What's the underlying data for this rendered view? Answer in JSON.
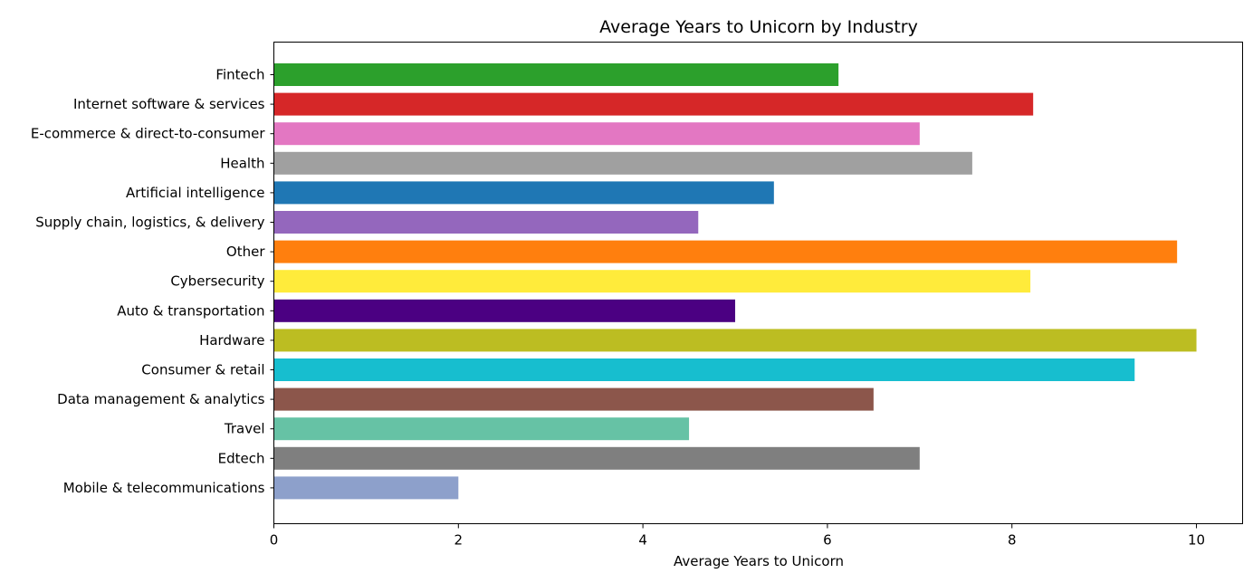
{
  "chart_data": {
    "type": "bar",
    "orientation": "horizontal",
    "title": "Average Years to Unicorn by Industry",
    "xlabel": "Average Years to Unicorn",
    "ylabel": "",
    "xlim": [
      0,
      10.5
    ],
    "xticks": [
      0,
      2,
      4,
      6,
      8,
      10
    ],
    "grid": false,
    "categories": [
      "Fintech",
      "Internet software & services",
      "E-commerce & direct-to-consumer",
      "Health",
      "Artificial intelligence",
      "Supply chain, logistics, & delivery",
      "Other",
      "Cybersecurity",
      "Auto & transportation",
      "Hardware",
      "Consumer & retail",
      "Data management & analytics",
      "Travel",
      "Edtech",
      "Mobile & telecommunications"
    ],
    "values": [
      6.12,
      8.23,
      7.0,
      7.57,
      5.42,
      4.6,
      9.79,
      8.2,
      5.0,
      10.0,
      9.33,
      6.5,
      4.5,
      7.0,
      2.0
    ],
    "colors": [
      "#2ca02c",
      "#d62728",
      "#e377c2",
      "#a0a0a0",
      "#1f77b4",
      "#9467bd",
      "#ff7f0e",
      "#ffeb3b",
      "#4b0082",
      "#bcbd22",
      "#17becf",
      "#8c564b",
      "#66c2a5",
      "#7f7f7f",
      "#8da0cb"
    ]
  }
}
